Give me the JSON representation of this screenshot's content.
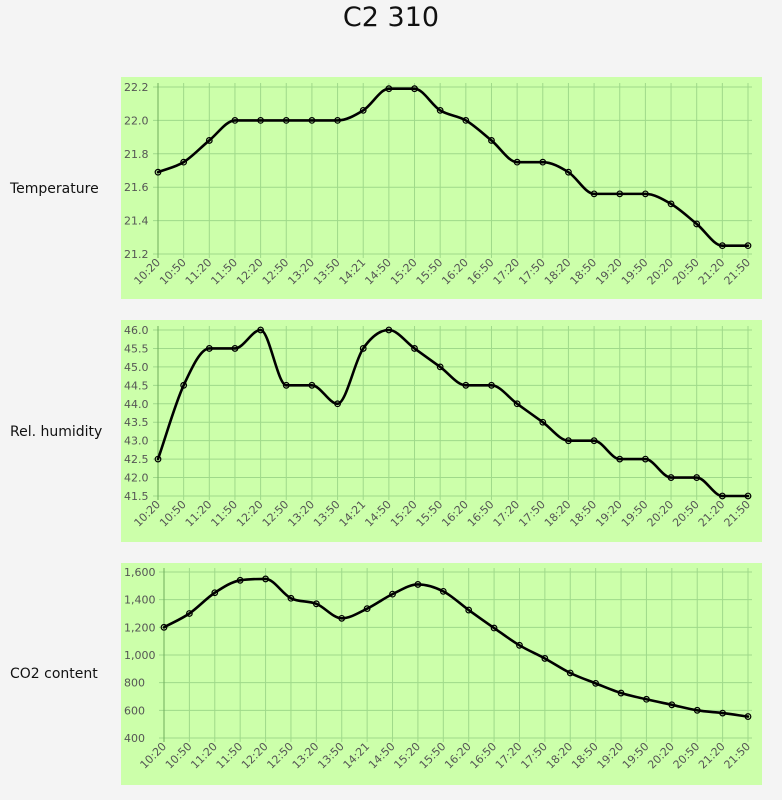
{
  "page": {
    "title": "C2 310"
  },
  "chart_data": [
    {
      "type": "line",
      "row_label": "Temperature",
      "x": [
        "10:20",
        "10:50",
        "11:20",
        "11:50",
        "12:20",
        "12:50",
        "13:20",
        "13:50",
        "14:21",
        "14:50",
        "15:20",
        "15:50",
        "16:20",
        "16:50",
        "17:20",
        "17:50",
        "18:20",
        "18:50",
        "19:20",
        "19:50",
        "20:20",
        "20:50",
        "21:20",
        "21:50"
      ],
      "series": [
        {
          "values": [
            21.69,
            21.75,
            21.88,
            22.0,
            22.0,
            22.0,
            22.0,
            22.0,
            22.06,
            22.19,
            22.19,
            22.06,
            22.0,
            21.88,
            21.75,
            21.75,
            21.69,
            21.56,
            21.56,
            21.56,
            21.5,
            21.38,
            21.25,
            21.25
          ]
        }
      ],
      "ylim": [
        21.2,
        22.2
      ],
      "yticks": [
        21.2,
        21.4,
        21.6,
        21.8,
        22.0,
        22.2
      ],
      "ytick_labels": [
        "21.2",
        "21.4",
        "21.6",
        "21.8",
        "22.0",
        "22.2"
      ],
      "grid": true,
      "line_color": "#000000",
      "background_color": "#ccffaa",
      "grid_color": "#9fd98a"
    },
    {
      "type": "line",
      "row_label": "Rel. humidity",
      "x": [
        "10:20",
        "10:50",
        "11:20",
        "11:50",
        "12:20",
        "12:50",
        "13:20",
        "13:50",
        "14:21",
        "14:50",
        "15:20",
        "15:50",
        "16:20",
        "16:50",
        "17:20",
        "17:50",
        "18:20",
        "18:50",
        "19:20",
        "19:50",
        "20:20",
        "20:50",
        "21:20",
        "21:50"
      ],
      "series": [
        {
          "values": [
            42.5,
            44.5,
            45.5,
            45.5,
            46.0,
            44.5,
            44.5,
            44.0,
            45.5,
            46.0,
            45.5,
            45.0,
            44.5,
            44.5,
            44.0,
            43.5,
            43.0,
            43.0,
            42.5,
            42.5,
            42.0,
            42.0,
            41.5,
            41.5
          ]
        }
      ],
      "ylim": [
        41.5,
        46.0
      ],
      "yticks": [
        41.5,
        42.0,
        42.5,
        43.0,
        43.5,
        44.0,
        44.5,
        45.0,
        45.5,
        46.0
      ],
      "ytick_labels": [
        "41.5",
        "42.0",
        "42.5",
        "43.0",
        "43.5",
        "44.0",
        "44.5",
        "45.0",
        "45.5",
        "46.0"
      ],
      "grid": true,
      "line_color": "#000000",
      "background_color": "#ccffaa",
      "grid_color": "#9fd98a"
    },
    {
      "type": "line",
      "row_label": "CO2 content",
      "x": [
        "10:20",
        "10:50",
        "11:20",
        "11:50",
        "12:20",
        "12:50",
        "13:20",
        "13:50",
        "14:21",
        "14:50",
        "15:20",
        "15:50",
        "16:20",
        "16:50",
        "17:20",
        "17:50",
        "18:20",
        "18:50",
        "19:20",
        "19:50",
        "20:20",
        "20:50",
        "21:20",
        "21:50"
      ],
      "series": [
        {
          "values": [
            1200,
            1300,
            1450,
            1540,
            1550,
            1410,
            1370,
            1265,
            1335,
            1440,
            1510,
            1460,
            1325,
            1195,
            1070,
            975,
            870,
            795,
            725,
            680,
            640,
            600,
            580,
            555
          ]
        }
      ],
      "ylim": [
        400,
        1600
      ],
      "yticks": [
        400,
        600,
        800,
        1000,
        1200,
        1400,
        1600
      ],
      "ytick_labels": [
        "400",
        "600",
        "800",
        "1,000",
        "1,200",
        "1,400",
        "1,600"
      ],
      "grid": true,
      "line_color": "#000000",
      "background_color": "#ccffaa",
      "grid_color": "#9fd98a"
    }
  ]
}
